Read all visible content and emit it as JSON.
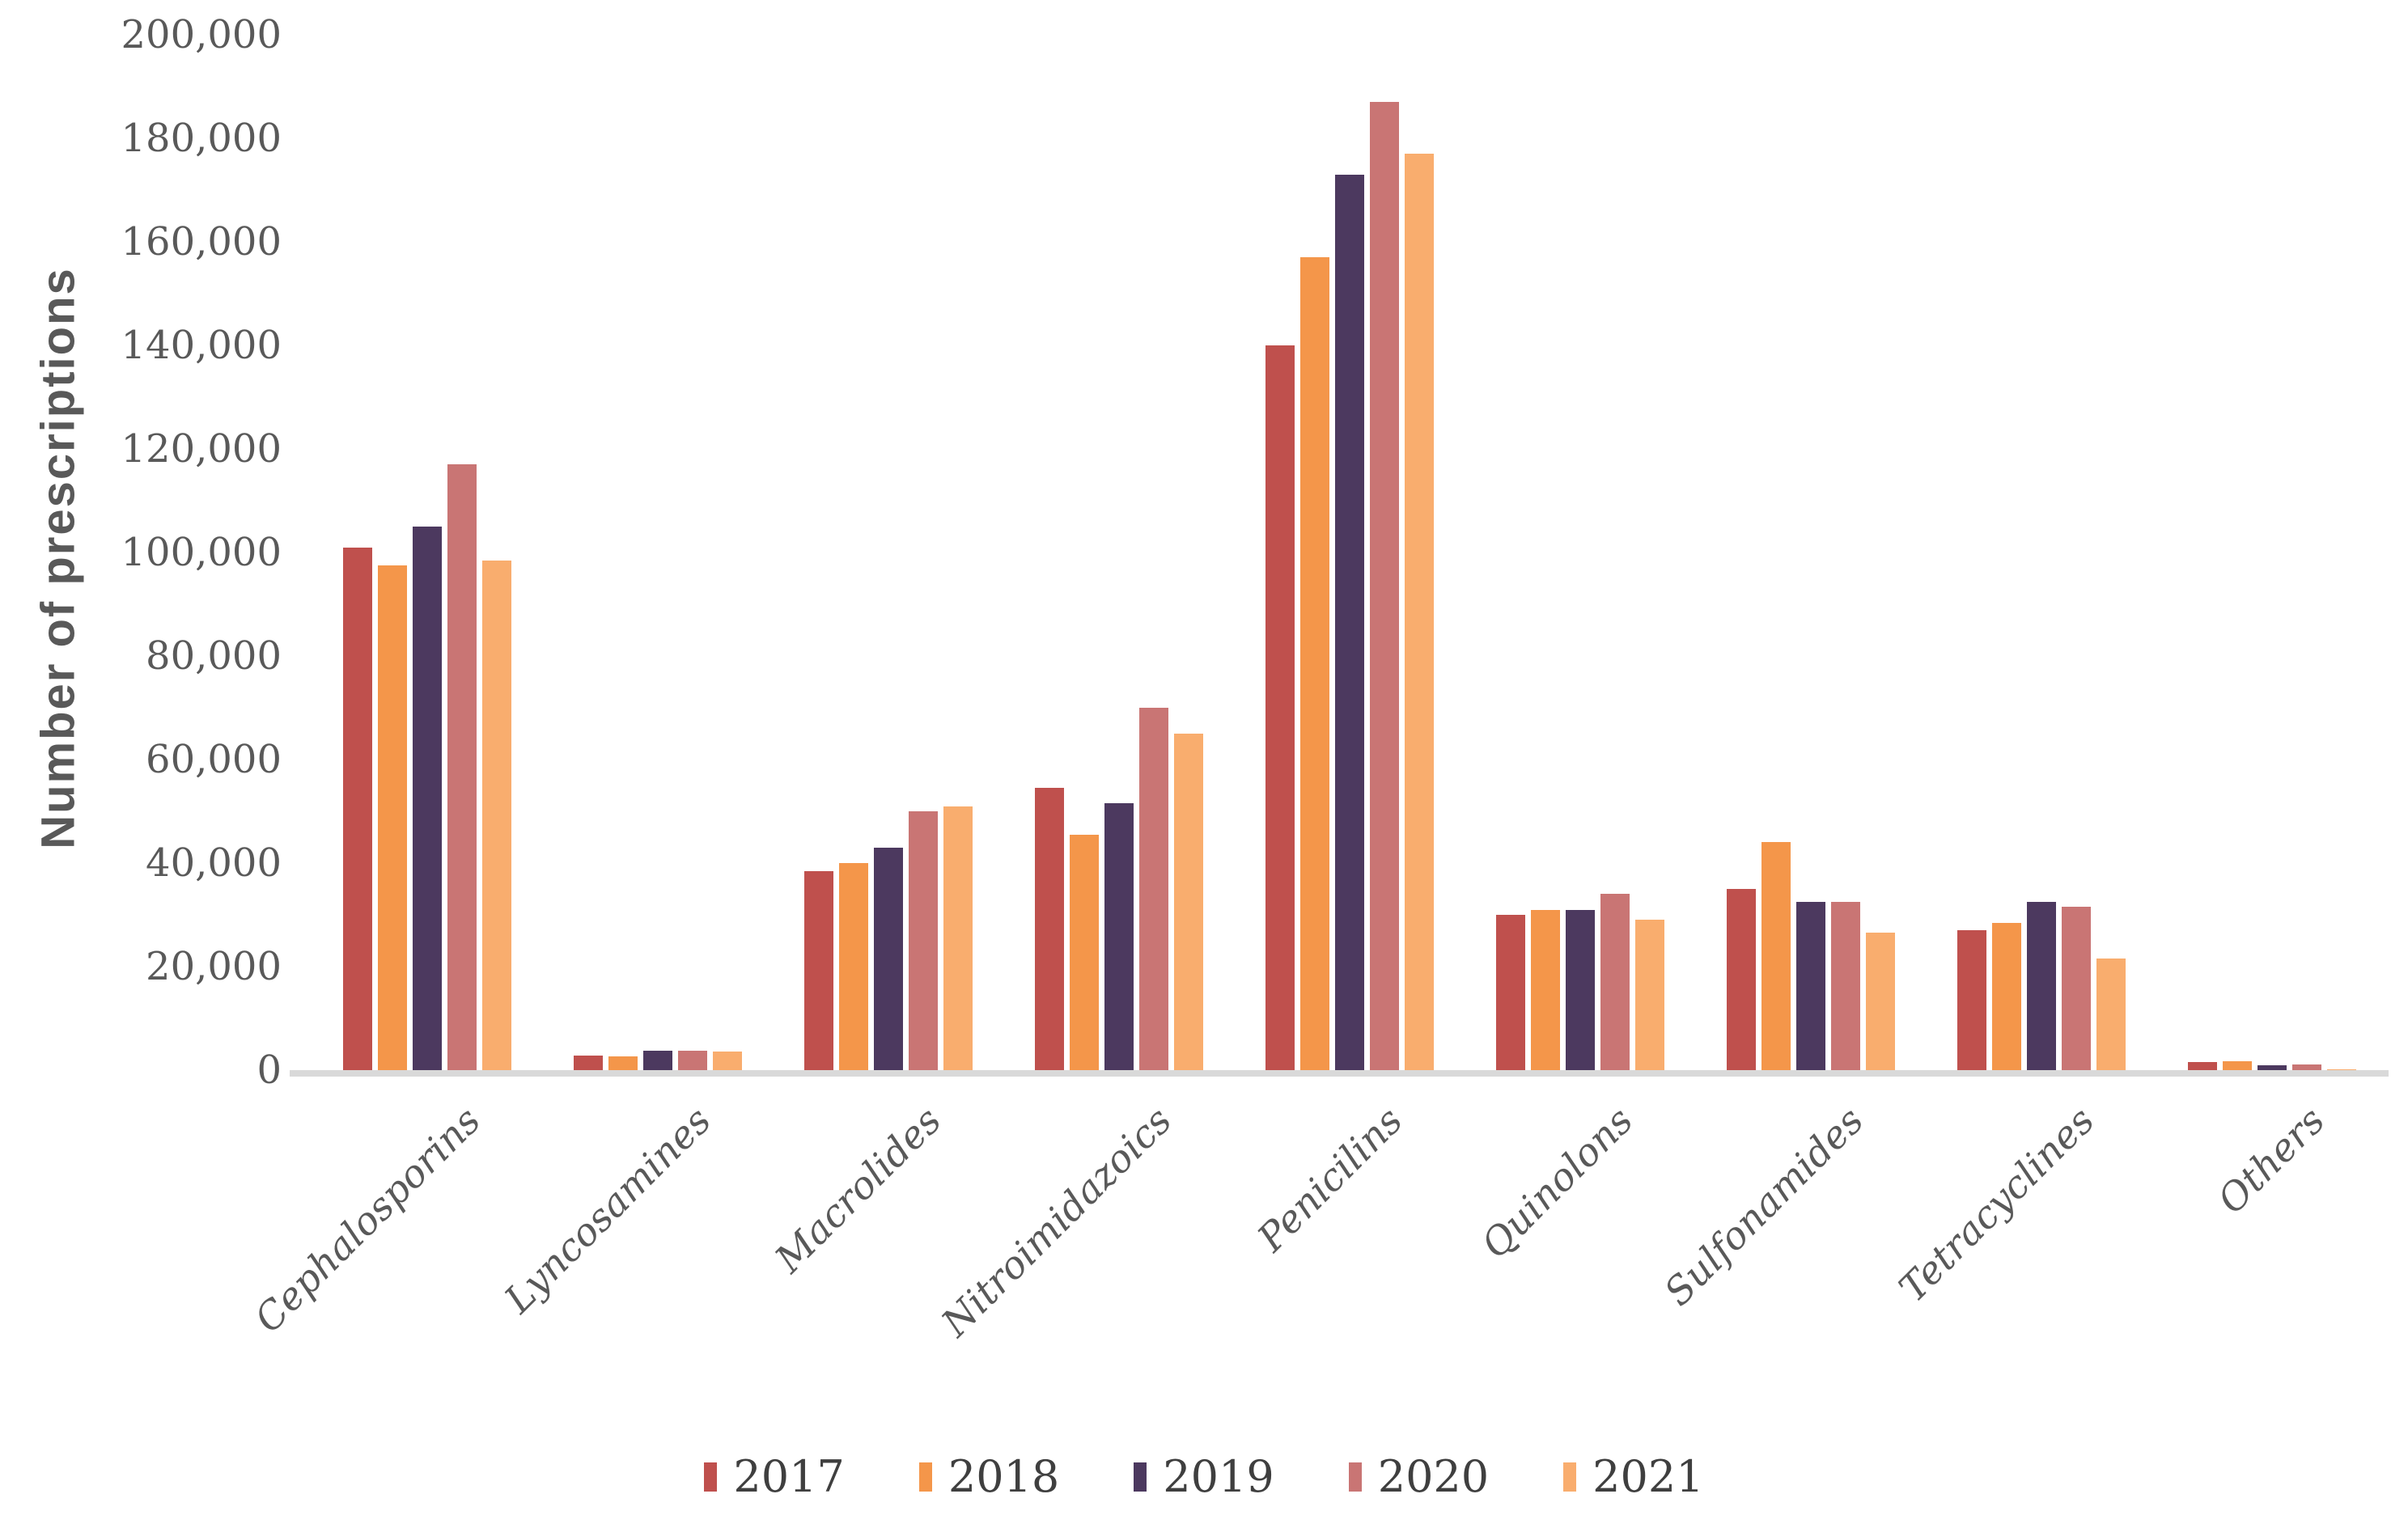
{
  "page": {
    "background": "#ffffff"
  },
  "chart_data": {
    "type": "bar",
    "title": "",
    "xlabel": "",
    "ylabel": "Number of prescriptions",
    "categories": [
      "Cephalosporins",
      "Lyncosamines",
      "Macrolides",
      "Nitroimidazoics",
      "Penicilins",
      "Quinolons",
      "Sulfonamides",
      "Tetracyclines",
      "Others"
    ],
    "series": [
      {
        "name": "2017",
        "color": "#bf504d",
        "values": [
          101000,
          2800,
          38500,
          54500,
          140000,
          30000,
          35000,
          27000,
          1600
        ]
      },
      {
        "name": "2018",
        "color": "#f4964a",
        "values": [
          97500,
          2700,
          40000,
          45500,
          157000,
          31000,
          44000,
          28500,
          1700
        ]
      },
      {
        "name": "2019",
        "color": "#4c395f",
        "values": [
          105000,
          3700,
          43000,
          51500,
          173000,
          31000,
          32500,
          32500,
          1000
        ]
      },
      {
        "name": "2020",
        "color": "#c97574",
        "values": [
          117000,
          3800,
          50000,
          70000,
          187000,
          34000,
          32500,
          31500,
          1100
        ]
      },
      {
        "name": "2021",
        "color": "#f9ad6e",
        "values": [
          98500,
          3600,
          51000,
          65000,
          177000,
          29000,
          26500,
          21500,
          200
        ]
      }
    ],
    "ylim": [
      0,
      200000
    ],
    "y_tick_step": 20000,
    "y_tick_labels": [
      "0",
      "20,000",
      "40,000",
      "60,000",
      "80,000",
      "100,000",
      "120,000",
      "140,000",
      "160,000",
      "180,000",
      "200,000"
    ],
    "grid": false,
    "legend_position": "bottom",
    "axis_line_color": "#d9d9d9",
    "text_color": "#595959",
    "legend_text_color": "#3f3f3f"
  }
}
